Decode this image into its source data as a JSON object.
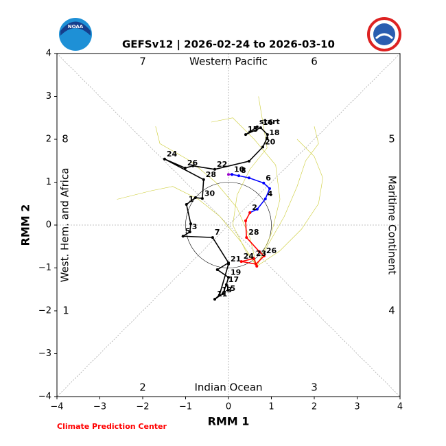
{
  "chart_data": {
    "type": "line",
    "title": "GEFSv12 | 2026-02-24 to 2026-03-10",
    "x_label": "RMM 1",
    "y_label": "RMM 2",
    "footer": "Climate Prediction Center",
    "logo_text": "NOAA",
    "region_labels": {
      "top": "Western Pacific",
      "bottom": "Indian Ocean",
      "left": "West. Hem. and Africa",
      "right": "Maritime Continent"
    },
    "phase_labels": [
      "1",
      "2",
      "3",
      "4",
      "5",
      "6",
      "7",
      "8"
    ],
    "xlim": [
      -4,
      4
    ],
    "ylim": [
      -4,
      4
    ],
    "xticks": [
      {
        "value": -4,
        "label": "−4"
      },
      {
        "value": -3,
        "label": "−3"
      },
      {
        "value": -2,
        "label": "−2"
      },
      {
        "value": -1,
        "label": "−1"
      },
      0,
      1,
      2,
      3,
      4
    ],
    "yticks": [
      {
        "value": -4,
        "label": "−4"
      },
      {
        "value": -3,
        "label": "−3"
      },
      {
        "value": -2,
        "label": "−2"
      },
      {
        "value": -1,
        "label": "−1"
      },
      0,
      1,
      2,
      3,
      4
    ],
    "series": [
      {
        "color": "#cccc33",
        "markers": false,
        "x": [
          0.66,
          0.9,
          1.3,
          1.6,
          1.8,
          2.1,
          2.0
        ],
        "y": [
          -0.96,
          -0.5,
          0.2,
          0.9,
          1.5,
          1.9,
          2.3
        ]
      },
      {
        "color": "#cccc33",
        "markers": false,
        "x": [
          0.66,
          0.3,
          -0.2,
          -0.7,
          -1.3,
          -1.8,
          -2.6
        ],
        "y": [
          -0.96,
          -0.4,
          0.2,
          0.6,
          0.9,
          0.8,
          0.6
        ]
      },
      {
        "color": "#cccc33",
        "markers": false,
        "x": [
          0.66,
          1.0,
          1.2,
          1.1,
          0.6,
          0.1,
          -0.4
        ],
        "y": [
          -0.96,
          -0.2,
          0.6,
          1.4,
          2.0,
          2.5,
          2.4
        ]
      },
      {
        "color": "#cccc33",
        "markers": false,
        "x": [
          0.66,
          0.5,
          0.2,
          -0.3,
          -0.9,
          -1.6,
          -1.7
        ],
        "y": [
          -0.96,
          -0.3,
          0.4,
          1.0,
          1.5,
          1.9,
          2.3
        ]
      },
      {
        "color": "#cccc33",
        "markers": false,
        "x": [
          0.66,
          1.2,
          1.7,
          2.1,
          2.2,
          2.0,
          1.6
        ],
        "y": [
          -0.96,
          -0.6,
          -0.1,
          0.5,
          1.1,
          1.6,
          2.0
        ]
      },
      {
        "color": "#cccc33",
        "markers": false,
        "x": [
          0.66,
          0.4,
          0.1,
          0.2,
          0.5,
          0.9,
          0.7
        ],
        "y": [
          -0.96,
          -0.6,
          0.0,
          0.7,
          1.3,
          1.8,
          3.0
        ]
      },
      {
        "color": "#000000",
        "markers": true,
        "x": [
          0.67,
          0.4,
          0.75,
          0.91,
          0.9,
          0.8,
          0.48,
          -0.32,
          -0.83,
          -1.01,
          -1.49,
          -0.58,
          -0.61,
          -0.77,
          -0.98,
          -0.88,
          -0.9,
          -1.06,
          -0.37,
          0.0,
          -0.26,
          0.0,
          -0.05,
          -0.13,
          -0.32,
          -0.21,
          0.0
        ],
        "y": [
          2.29,
          2.11,
          2.27,
          2.11,
          2.03,
          1.82,
          1.49,
          1.3,
          1.38,
          1.33,
          1.54,
          1.06,
          0.62,
          0.64,
          0.48,
          0.03,
          -0.16,
          -0.26,
          -0.29,
          -0.88,
          -1.04,
          -1.22,
          -1.39,
          -1.6,
          -1.73,
          -1.63,
          -0.91
        ],
        "point_labels": [
          "start",
          "15",
          "16",
          null,
          "18",
          "20",
          null,
          "22",
          null,
          "26",
          "24",
          "28",
          "30",
          null,
          "1",
          null,
          "3",
          "5",
          "7",
          null,
          null,
          "19",
          "17",
          "15",
          "11",
          "13",
          "21"
        ]
      },
      {
        "color": "#9900cc",
        "markers": true,
        "x": [
          0.0,
          0.08
        ],
        "y": [
          1.18,
          1.18
        ],
        "point_labels": [
          null,
          "10"
        ]
      },
      {
        "color": "#0000ff",
        "markers": true,
        "x": [
          0.08,
          0.24,
          0.48,
          0.82,
          0.96,
          0.86,
          0.67,
          0.5
        ],
        "y": [
          1.18,
          1.15,
          1.1,
          0.98,
          0.85,
          0.61,
          0.37,
          0.29
        ],
        "point_labels": [
          null,
          "8",
          null,
          "6",
          null,
          "4",
          null,
          "2"
        ]
      },
      {
        "color": "#ff0000",
        "markers": true,
        "x": [
          0.5,
          0.4,
          0.42,
          0.72,
          0.83,
          0.64,
          0.3,
          0.59,
          0.66
        ],
        "y": [
          0.29,
          0.1,
          -0.29,
          -0.62,
          -0.72,
          -0.91,
          -0.85,
          -0.78,
          -0.96
        ],
        "point_labels": [
          null,
          null,
          "28",
          null,
          "26",
          null,
          "24",
          "23",
          null
        ]
      }
    ]
  }
}
